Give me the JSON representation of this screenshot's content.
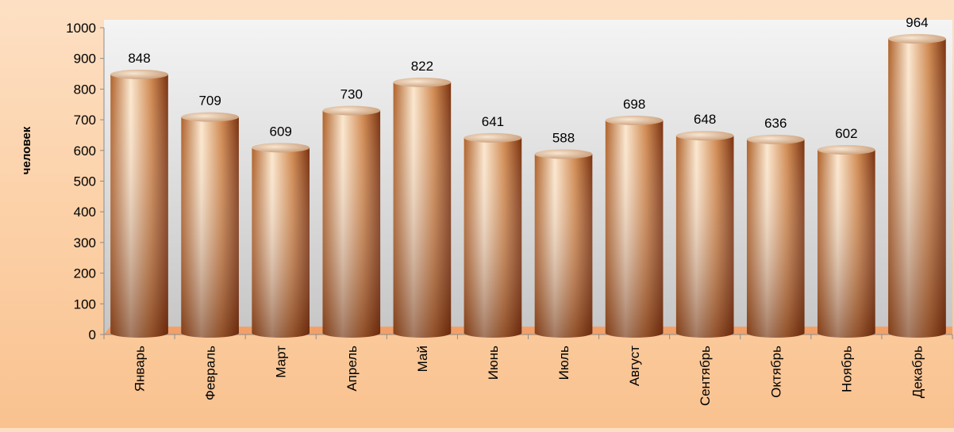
{
  "chart_data": {
    "type": "bar",
    "title": "",
    "xlabel": "",
    "ylabel": "человек",
    "categories": [
      "Январь",
      "Февраль",
      "Март",
      "Апрель",
      "Май",
      "Июнь",
      "Июль",
      "Август",
      "Сентябрь",
      "Октябрь",
      "Ноябрь",
      "Декабрь"
    ],
    "values": [
      848,
      709,
      609,
      730,
      822,
      641,
      588,
      698,
      648,
      636,
      602,
      964
    ],
    "ylim": [
      0,
      1000
    ],
    "yticks": [
      0,
      100,
      200,
      300,
      400,
      500,
      600,
      700,
      800,
      900,
      1000
    ],
    "grid": false,
    "legend": "none",
    "colors": {
      "bar_light": "#fbe7cf",
      "bar_mid": "#d08a52",
      "bar_dark": "#7a3210",
      "bar_top": "#f1d3b0",
      "floor": "#f2a06a",
      "plot_top": "#f4f4f4",
      "plot_bottom": "#c6c6c6"
    }
  }
}
